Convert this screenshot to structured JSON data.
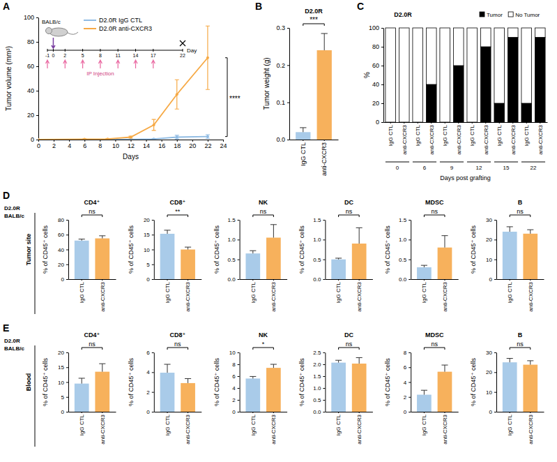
{
  "chart_data": [
    {
      "panel": "A",
      "type": "line",
      "marker": "circle",
      "ylabel": "Tumor volume (mm³)",
      "xlabel": "Days",
      "x": [
        0,
        6,
        9,
        12,
        15,
        18,
        22
      ],
      "series": [
        {
          "name": "D2.0R IgG CTL",
          "color": "#8fbbe3",
          "values": [
            0,
            0,
            0,
            0.2,
            0.5,
            2,
            2.5
          ],
          "errors": [
            0,
            0,
            0,
            0.1,
            0.3,
            1.5,
            1.5
          ]
        },
        {
          "name": "D2.0R anti-CXCR3",
          "color": "#f6a945",
          "values": [
            0,
            0.3,
            0.5,
            2,
            12,
            37,
            67
          ],
          "errors": [
            0,
            0.2,
            0.3,
            0.8,
            4.5,
            12,
            26
          ]
        }
      ],
      "xlim": [
        0,
        24
      ],
      "xticks": [
        0,
        2,
        4,
        6,
        8,
        10,
        12,
        14,
        16,
        18,
        20,
        22,
        24
      ],
      "ylim": [
        0,
        100
      ],
      "yticks": [
        0,
        20,
        40,
        60,
        80,
        100
      ],
      "legend": "upper left",
      "significance": "****",
      "inset": {
        "title": "BALB/c",
        "xlabel": "Day",
        "ticks": [
          -1,
          0,
          2,
          5,
          8,
          11,
          14,
          17,
          22
        ],
        "injection_days": [
          -1,
          2,
          5,
          8,
          11,
          14,
          17
        ],
        "injection_label": "IP Injection",
        "grafting_day": 0,
        "harvest_day": 22
      }
    },
    {
      "panel": "B",
      "type": "bar",
      "title": "D2.0R",
      "ylabel": "Tumor weight (g)",
      "categories": [
        "IgG CTL",
        "anti-CXCR3"
      ],
      "values": [
        0.02,
        0.24
      ],
      "errors": [
        0.012,
        0.045
      ],
      "colors": [
        "#a9cbe9",
        "#f7b15c"
      ],
      "ylim": [
        0,
        0.3
      ],
      "yticks": [
        {
          "value": 0,
          "label": "0.0"
        },
        0.1,
        0.2,
        0.3
      ],
      "significance": "***"
    },
    {
      "panel": "C",
      "type": "bar",
      "stacked": true,
      "title": "D2.0R",
      "ylabel": "%",
      "xlabel": "Days post grafting",
      "categories": [
        "IgG CTL",
        "anti-CXCR3",
        "IgG CTL",
        "anti-CXCR3",
        "IgG CTL",
        "anti-CXCR3",
        "IgG CTL",
        "anti-CXCR3",
        "IgG CTL",
        "anti-CXCR3",
        "IgG CTL",
        "anti-CXCR3"
      ],
      "days": [
        0,
        6,
        9,
        12,
        15,
        22
      ],
      "series": [
        {
          "name": "Tumor",
          "color": "#000000",
          "values": [
            0,
            0,
            0,
            40,
            0,
            60,
            0,
            80,
            20,
            90,
            20,
            90
          ]
        },
        {
          "name": "No Tumor",
          "color": "#ffffff",
          "values": [
            100,
            100,
            100,
            60,
            100,
            40,
            100,
            20,
            80,
            10,
            80,
            10
          ]
        }
      ],
      "ylim": [
        0,
        100
      ],
      "yticks": [
        0,
        20,
        40,
        60,
        80,
        100
      ],
      "legend": "upper right"
    },
    {
      "panel": "D",
      "row_label": [
        "D2.0R",
        "BALB/c"
      ],
      "side_label": "Tumor site",
      "type": "bar",
      "title": "CD4⁺",
      "ylabel": "% of CD45⁺ cells",
      "categories": [
        "IgG CTL",
        "anti-CXCR3"
      ],
      "values": [
        52,
        55
      ],
      "errors": [
        2,
        3.5
      ],
      "colors": [
        "#a9cbe9",
        "#f7b15c"
      ],
      "ylim": [
        0,
        80
      ],
      "yticks": [
        0,
        20,
        40,
        60,
        80
      ],
      "significance": "ns"
    },
    {
      "type": "bar",
      "title": "CD8⁺",
      "ylabel": "% of CD45⁺ cells",
      "categories": [
        "IgG CTL",
        "anti-CXCR3"
      ],
      "values": [
        15.3,
        10
      ],
      "errors": [
        1.2,
        0.8
      ],
      "colors": [
        "#a9cbe9",
        "#f7b15c"
      ],
      "ylim": [
        0,
        20
      ],
      "yticks": [
        0,
        5,
        10,
        15,
        20
      ],
      "significance": "**"
    },
    {
      "type": "bar",
      "title": "NK",
      "ylabel": "% of CD45⁺ cells",
      "categories": [
        "IgG CTL",
        "anti-CXCR3"
      ],
      "values": [
        0.65,
        1.05
      ],
      "errors": [
        0.07,
        0.33
      ],
      "colors": [
        "#a9cbe9",
        "#f7b15c"
      ],
      "ylim": [
        0,
        1.5
      ],
      "yticks": [
        {
          "value": 0,
          "label": "0.0"
        },
        0.5,
        {
          "value": 1,
          "label": "1.0"
        },
        1.5
      ],
      "significance": "ns"
    },
    {
      "type": "bar",
      "title": "DC",
      "ylabel": "% of CD45⁺ cells",
      "categories": [
        "IgG CTL",
        "anti-CXCR3"
      ],
      "values": [
        0.5,
        0.9
      ],
      "errors": [
        0.03,
        0.4
      ],
      "colors": [
        "#a9cbe9",
        "#f7b15c"
      ],
      "ylim": [
        0,
        1.5
      ],
      "yticks": [
        {
          "value": 0,
          "label": "0.0"
        },
        0.5,
        {
          "value": 1,
          "label": "1.0"
        },
        1.5
      ],
      "significance": "ns"
    },
    {
      "type": "bar",
      "title": "MDSC",
      "ylabel": "% of CD45⁺ cells",
      "categories": [
        "IgG CTL",
        "anti-CXCR3"
      ],
      "values": [
        0.3,
        0.8
      ],
      "errors": [
        0.05,
        0.3
      ],
      "colors": [
        "#a9cbe9",
        "#f7b15c"
      ],
      "ylim": [
        0,
        1.5
      ],
      "yticks": [
        {
          "value": 0,
          "label": "0.0"
        },
        0.5,
        {
          "value": 1,
          "label": "1.0"
        },
        1.5
      ],
      "significance": "ns"
    },
    {
      "type": "bar",
      "title": "B",
      "ylabel": "% of CD45⁺ cells",
      "categories": [
        "IgG CTL",
        "anti-CXCR3"
      ],
      "values": [
        24,
        23
      ],
      "errors": [
        2.5,
        2
      ],
      "colors": [
        "#a9cbe9",
        "#f7b15c"
      ],
      "ylim": [
        0,
        30
      ],
      "yticks": [
        0,
        10,
        20,
        30
      ],
      "significance": "ns"
    },
    {
      "panel": "E",
      "row_label": [
        "D2.0R",
        "BALB/c"
      ],
      "side_label": "Blood",
      "type": "bar",
      "title": "CD4⁺",
      "ylabel": "% of CD45⁺ cells",
      "categories": [
        "IgG CTL",
        "anti-CXCR3"
      ],
      "values": [
        9.5,
        13.5
      ],
      "errors": [
        1.8,
        2.7
      ],
      "colors": [
        "#a9cbe9",
        "#f7b15c"
      ],
      "ylim": [
        0,
        20
      ],
      "yticks": [
        0,
        5,
        10,
        15,
        20
      ],
      "significance": "ns"
    },
    {
      "type": "bar",
      "title": "CD8⁺",
      "ylabel": "% of CD45⁺ cells",
      "categories": [
        "IgG CTL",
        "anti-CXCR3"
      ],
      "values": [
        3.95,
        2.9
      ],
      "errors": [
        0.85,
        0.45
      ],
      "colors": [
        "#a9cbe9",
        "#f7b15c"
      ],
      "ylim": [
        0,
        6
      ],
      "yticks": [
        0,
        2,
        4,
        6
      ],
      "significance": "ns"
    },
    {
      "type": "bar",
      "title": "NK",
      "ylabel": "% of CD45⁺ cells",
      "categories": [
        "IgG CTL",
        "anti-CXCR3"
      ],
      "values": [
        5.6,
        7.4
      ],
      "errors": [
        0.35,
        0.6
      ],
      "colors": [
        "#a9cbe9",
        "#f7b15c"
      ],
      "ylim": [
        0,
        10
      ],
      "yticks": [
        0,
        2,
        4,
        6,
        8,
        10
      ],
      "significance": "*"
    },
    {
      "type": "bar",
      "title": "DC",
      "ylabel": "% of CD45⁺ cells",
      "categories": [
        "IgG CTL",
        "anti-CXCR3"
      ],
      "values": [
        2.07,
        2.03
      ],
      "errors": [
        0.1,
        0.25
      ],
      "colors": [
        "#a9cbe9",
        "#f7b15c"
      ],
      "ylim": [
        0,
        2.5
      ],
      "yticks": [
        {
          "value": 0,
          "label": "0.0"
        },
        0.5,
        {
          "value": 1,
          "label": "1.0"
        },
        1.5,
        {
          "value": 2,
          "label": "2.0"
        },
        2.5
      ],
      "significance": "ns"
    },
    {
      "type": "bar",
      "title": "MDSC",
      "ylabel": "% of CD45⁺ cells",
      "categories": [
        "IgG CTL",
        "anti-CXCR3"
      ],
      "values": [
        2.3,
        5.4
      ],
      "errors": [
        0.6,
        0.9
      ],
      "colors": [
        "#a9cbe9",
        "#f7b15c"
      ],
      "ylim": [
        0,
        8
      ],
      "yticks": [
        0,
        2,
        4,
        6,
        8
      ],
      "significance": "ns"
    },
    {
      "type": "bar",
      "title": "B",
      "ylabel": "% of CD45⁺ cells",
      "categories": [
        "IgG CTL",
        "anti-CXCR3"
      ],
      "values": [
        25,
        23.8
      ],
      "errors": [
        2,
        2
      ],
      "colors": [
        "#a9cbe9",
        "#f7b15c"
      ],
      "ylim": [
        0,
        30
      ],
      "yticks": [
        0,
        10,
        20,
        30
      ],
      "significance": "ns"
    }
  ]
}
